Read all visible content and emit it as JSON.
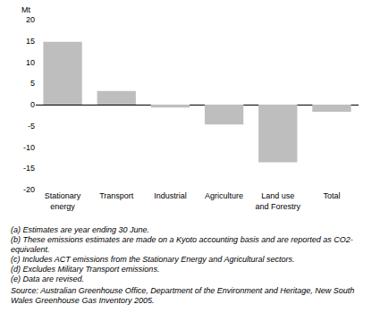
{
  "chart_data": {
    "type": "bar",
    "ylabel": "Mt",
    "categories": [
      "Stationary\nenergy",
      "Transport",
      "Industrial",
      "Agriculture",
      "Land use\nand Forestry",
      "Total"
    ],
    "values": [
      14.8,
      3.2,
      -0.7,
      -4.7,
      -13.6,
      -1.7
    ],
    "color": "#bebebe",
    "ylim": [
      -20,
      20
    ],
    "yticks": [
      -20,
      -15,
      -10,
      -5,
      0,
      5,
      10,
      15,
      20
    ],
    "grid": true,
    "notes": [
      "(a) Estimates are year ending 30 June.",
      "(b) These emissions estimates are made on a Kyoto accounting basis and are reported as CO2-equivalent.",
      "(c) Includes ACT emissions from the Stationary Energy and Agricultural sectors.",
      "(d) Excludes Military Transport emissions.",
      "(e) Data are revised."
    ],
    "source": "Source: Australian Greenhouse Office, Department of the Environment and Heritage, New South Wales Greenhouse Gas Inventory 2005."
  }
}
